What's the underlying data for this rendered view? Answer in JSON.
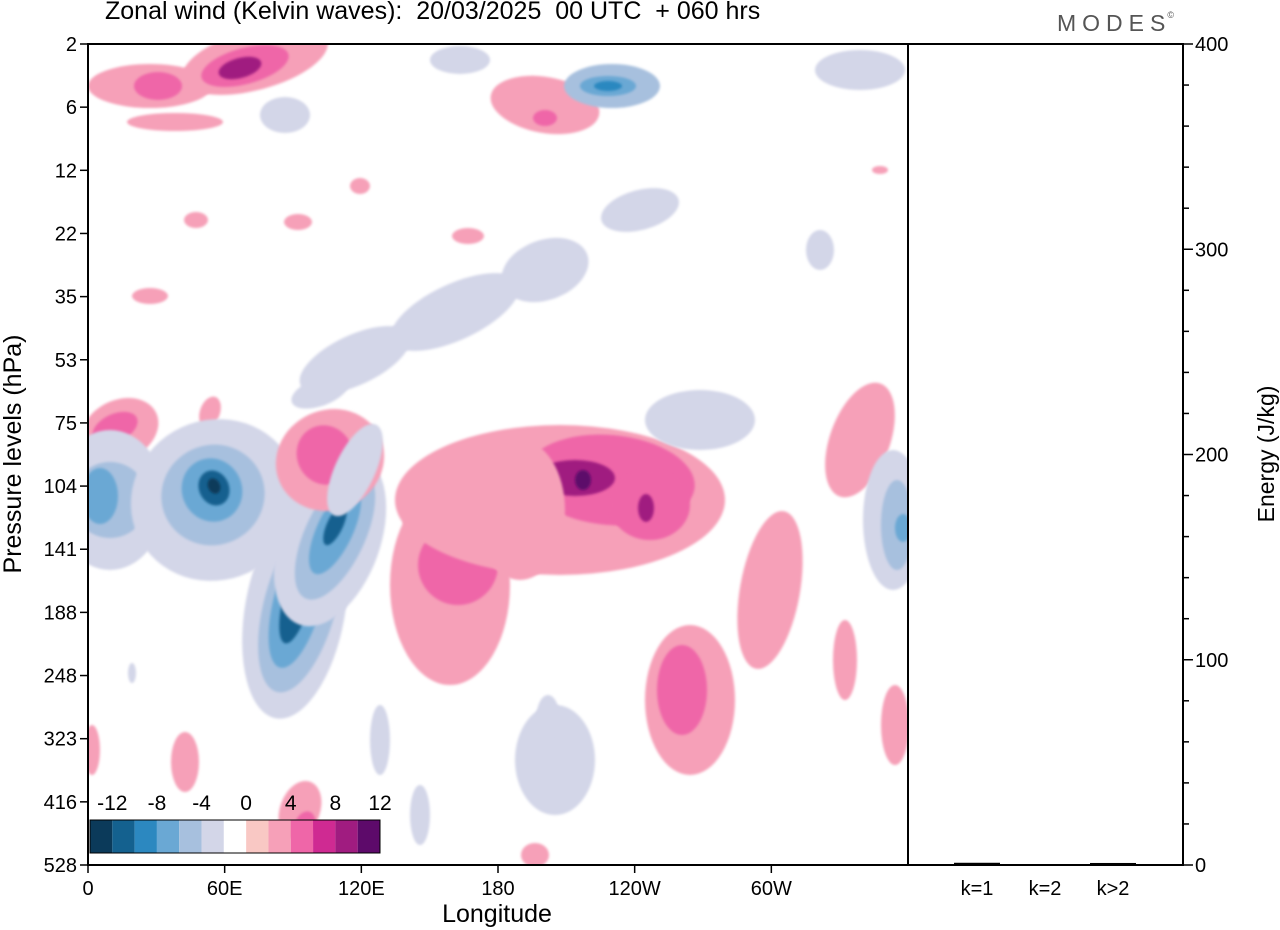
{
  "header": {
    "title": "Zonal wind (Kelvin waves):  20/03/2025  00 UTC  + 060 hrs",
    "logo": "MODES",
    "logo_mark": "©"
  },
  "chart_data": [
    {
      "type": "heatmap",
      "title": "Zonal wind (Kelvin waves):  20/03/2025  00 UTC  + 060 hrs",
      "xlabel": "Longitude",
      "ylabel": "Pressure levels (hPa)",
      "x_ticks": [
        "0",
        "60E",
        "120E",
        "180",
        "120W",
        "60W"
      ],
      "x_tick_degrees": [
        0,
        60,
        120,
        180,
        240,
        300
      ],
      "xlim": [
        0,
        360
      ],
      "y_ticks": [
        "2",
        "6",
        "12",
        "22",
        "35",
        "53",
        "75",
        "104",
        "141",
        "188",
        "248",
        "323",
        "416",
        "528"
      ],
      "y_scale": "level index (top = 2 hPa, bottom = 528 hPa)",
      "grid": false,
      "colorbar": {
        "labels": [
          "-12",
          "-8",
          "-4",
          "0",
          "4",
          "8",
          "12"
        ],
        "levels": [
          -14,
          -12,
          -10,
          -8,
          -6,
          -4,
          -2,
          2,
          4,
          6,
          8,
          10,
          12,
          14
        ],
        "colors": [
          "#0b3a5a",
          "#14618f",
          "#2c88c0",
          "#6aa8d4",
          "#a7c0de",
          "#d3d6e8",
          "#ffffff",
          "#f9c8c4",
          "#f6a0b8",
          "#ef66a8",
          "#cf2a92",
          "#a01c80",
          "#5d0a6a"
        ],
        "placement": "bottom-left"
      },
      "features": [
        {
          "lon": 20,
          "level": "104-141",
          "value": -6
        },
        {
          "lon": 50,
          "level": "104",
          "value": -12
        },
        {
          "lon": 93,
          "level": "141-248",
          "value": -12
        },
        {
          "lon": 105,
          "level": "104-141",
          "value": -10
        },
        {
          "lon": 48,
          "level": "4",
          "value": 9
        },
        {
          "lon": 23,
          "level": "4",
          "value": 5
        },
        {
          "lon": 20,
          "level": "75",
          "value": 6
        },
        {
          "lon": 95,
          "level": "75-104",
          "value": 6
        },
        {
          "lon": 165,
          "level": "141",
          "value": 6
        },
        {
          "lon": 215,
          "level": "104",
          "value": 10
        },
        {
          "lon": 245,
          "level": "104",
          "value": 9
        },
        {
          "lon": 258,
          "level": "248",
          "value": 6
        },
        {
          "lon": 233,
          "level": "6",
          "value": -7
        },
        {
          "lon": 355,
          "level": "141",
          "value": -6
        }
      ]
    },
    {
      "type": "bar",
      "categories": [
        "k=1",
        "k=2",
        "k>2"
      ],
      "values": [
        0.6,
        0.0,
        0.5
      ],
      "ylabel": "Energy (J/kg)",
      "ylim": [
        0,
        400
      ],
      "y_ticks": [
        0,
        100,
        200,
        300,
        400
      ],
      "xlabel": ""
    }
  ]
}
